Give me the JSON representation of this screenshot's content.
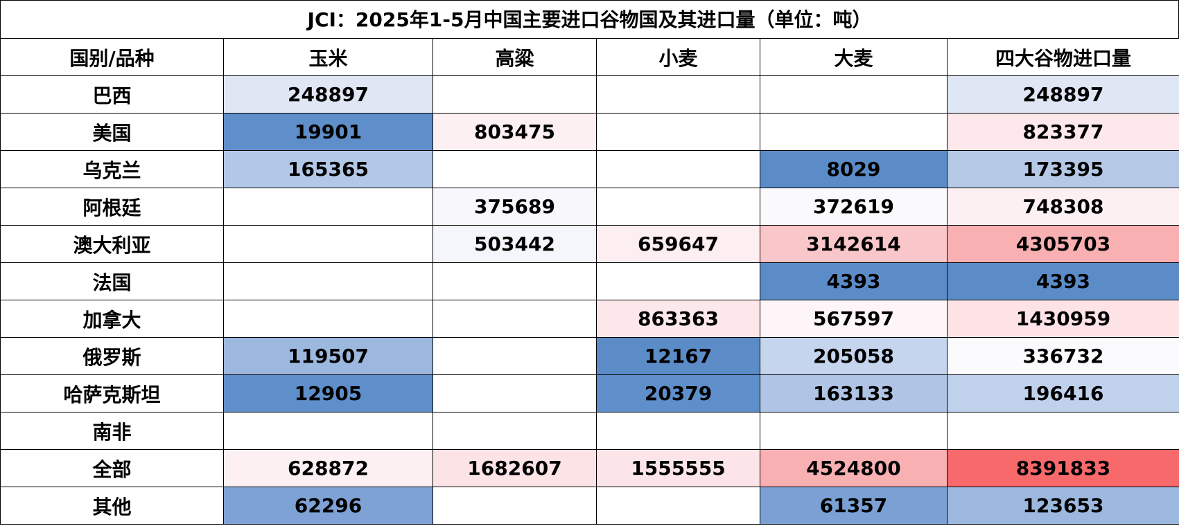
{
  "title": "JCI：2025年1-5月中国主要进口谷物国及其进口量（单位：吨）",
  "columns": [
    "国别/品种",
    "玉米",
    "高粱",
    "小麦",
    "大麦",
    "四大谷物进口量"
  ],
  "rows": [
    {
      "country": "巴西",
      "cells": [
        "248897",
        "",
        "",
        "",
        "248897"
      ],
      "colors": [
        "#dfe6f4",
        "",
        "",
        "",
        "#dfe6f4"
      ]
    },
    {
      "country": "美国",
      "cells": [
        "19901",
        "803475",
        "",
        "",
        "823377"
      ],
      "colors": [
        "#5f8fca",
        "#fdf0f2",
        "",
        "",
        "#fde9ec"
      ]
    },
    {
      "country": "乌克兰",
      "cells": [
        "165365",
        "",
        "",
        "8029",
        "173395"
      ],
      "colors": [
        "#b3c7e6",
        "",
        "",
        "#5b8cc8",
        "#b5c9e6"
      ]
    },
    {
      "country": "阿根廷",
      "cells": [
        "",
        "375689",
        "",
        "372619",
        "748308"
      ],
      "colors": [
        "",
        "#f8f8fc",
        "",
        "#fafafd",
        "#fdf0f2"
      ]
    },
    {
      "country": "澳大利亚",
      "cells": [
        "",
        "503442",
        "659647",
        "3142614",
        "4305703"
      ],
      "colors": [
        "",
        "#f5f6fb",
        "#fdeff1",
        "#f9c6c9",
        "#f9b0b3"
      ]
    },
    {
      "country": "法国",
      "cells": [
        "",
        "",
        "",
        "4393",
        "4393"
      ],
      "colors": [
        "",
        "",
        "",
        "#5b8cc8",
        "#5b8cc8"
      ]
    },
    {
      "country": "加拿大",
      "cells": [
        "",
        "",
        "863363",
        "567597",
        "1430959"
      ],
      "colors": [
        "",
        "",
        "#fce8eb",
        "#fdf5f7",
        "#fde3e6"
      ]
    },
    {
      "country": "俄罗斯",
      "cells": [
        "119507",
        "",
        "12167",
        "205058",
        "336732"
      ],
      "colors": [
        "#9db8df",
        "",
        "#5b8cc8",
        "#c6d5ee",
        "#fbfbfe"
      ]
    },
    {
      "country": "哈萨克斯坦",
      "cells": [
        "12905",
        "",
        "20379",
        "163133",
        "196416"
      ],
      "colors": [
        "#5f8fca",
        "",
        "#5f8fca",
        "#b0c5e5",
        "#c0d1ec"
      ]
    },
    {
      "country": "南非",
      "cells": [
        "",
        "",
        "",
        "",
        ""
      ],
      "colors": [
        "",
        "",
        "",
        "",
        ""
      ]
    },
    {
      "country": "全部",
      "cells": [
        "628872",
        "1682607",
        "1555555",
        "4524800",
        "8391833"
      ],
      "colors": [
        "#fdf0f2",
        "#fce3e6",
        "#fce5e8",
        "#f9b0b3",
        "#f8696b"
      ]
    },
    {
      "country": "其他",
      "cells": [
        "62296",
        "",
        "",
        "61357",
        "123653"
      ],
      "colors": [
        "#7ea2d5",
        "",
        "",
        "#7aa0d4",
        "#9db8df"
      ]
    }
  ]
}
